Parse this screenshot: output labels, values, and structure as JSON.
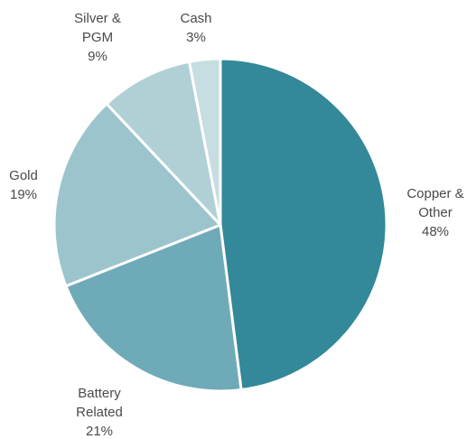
{
  "chart_data": {
    "type": "pie",
    "slices": [
      {
        "label_lines": [
          "Copper &",
          "Other",
          "48%"
        ],
        "value": 48,
        "color": "#338899"
      },
      {
        "label_lines": [
          "Battery",
          "Related",
          "21%"
        ],
        "value": 21,
        "color": "#6faab8"
      },
      {
        "label_lines": [
          "Gold",
          "19%"
        ],
        "value": 19,
        "color": "#9cc4cc"
      },
      {
        "label_lines": [
          "Silver &",
          "PGM",
          "9%"
        ],
        "value": 9,
        "color": "#b0d0d6"
      },
      {
        "label_lines": [
          "Cash",
          "3%"
        ],
        "value": 3,
        "color": "#c6dde2"
      }
    ]
  }
}
